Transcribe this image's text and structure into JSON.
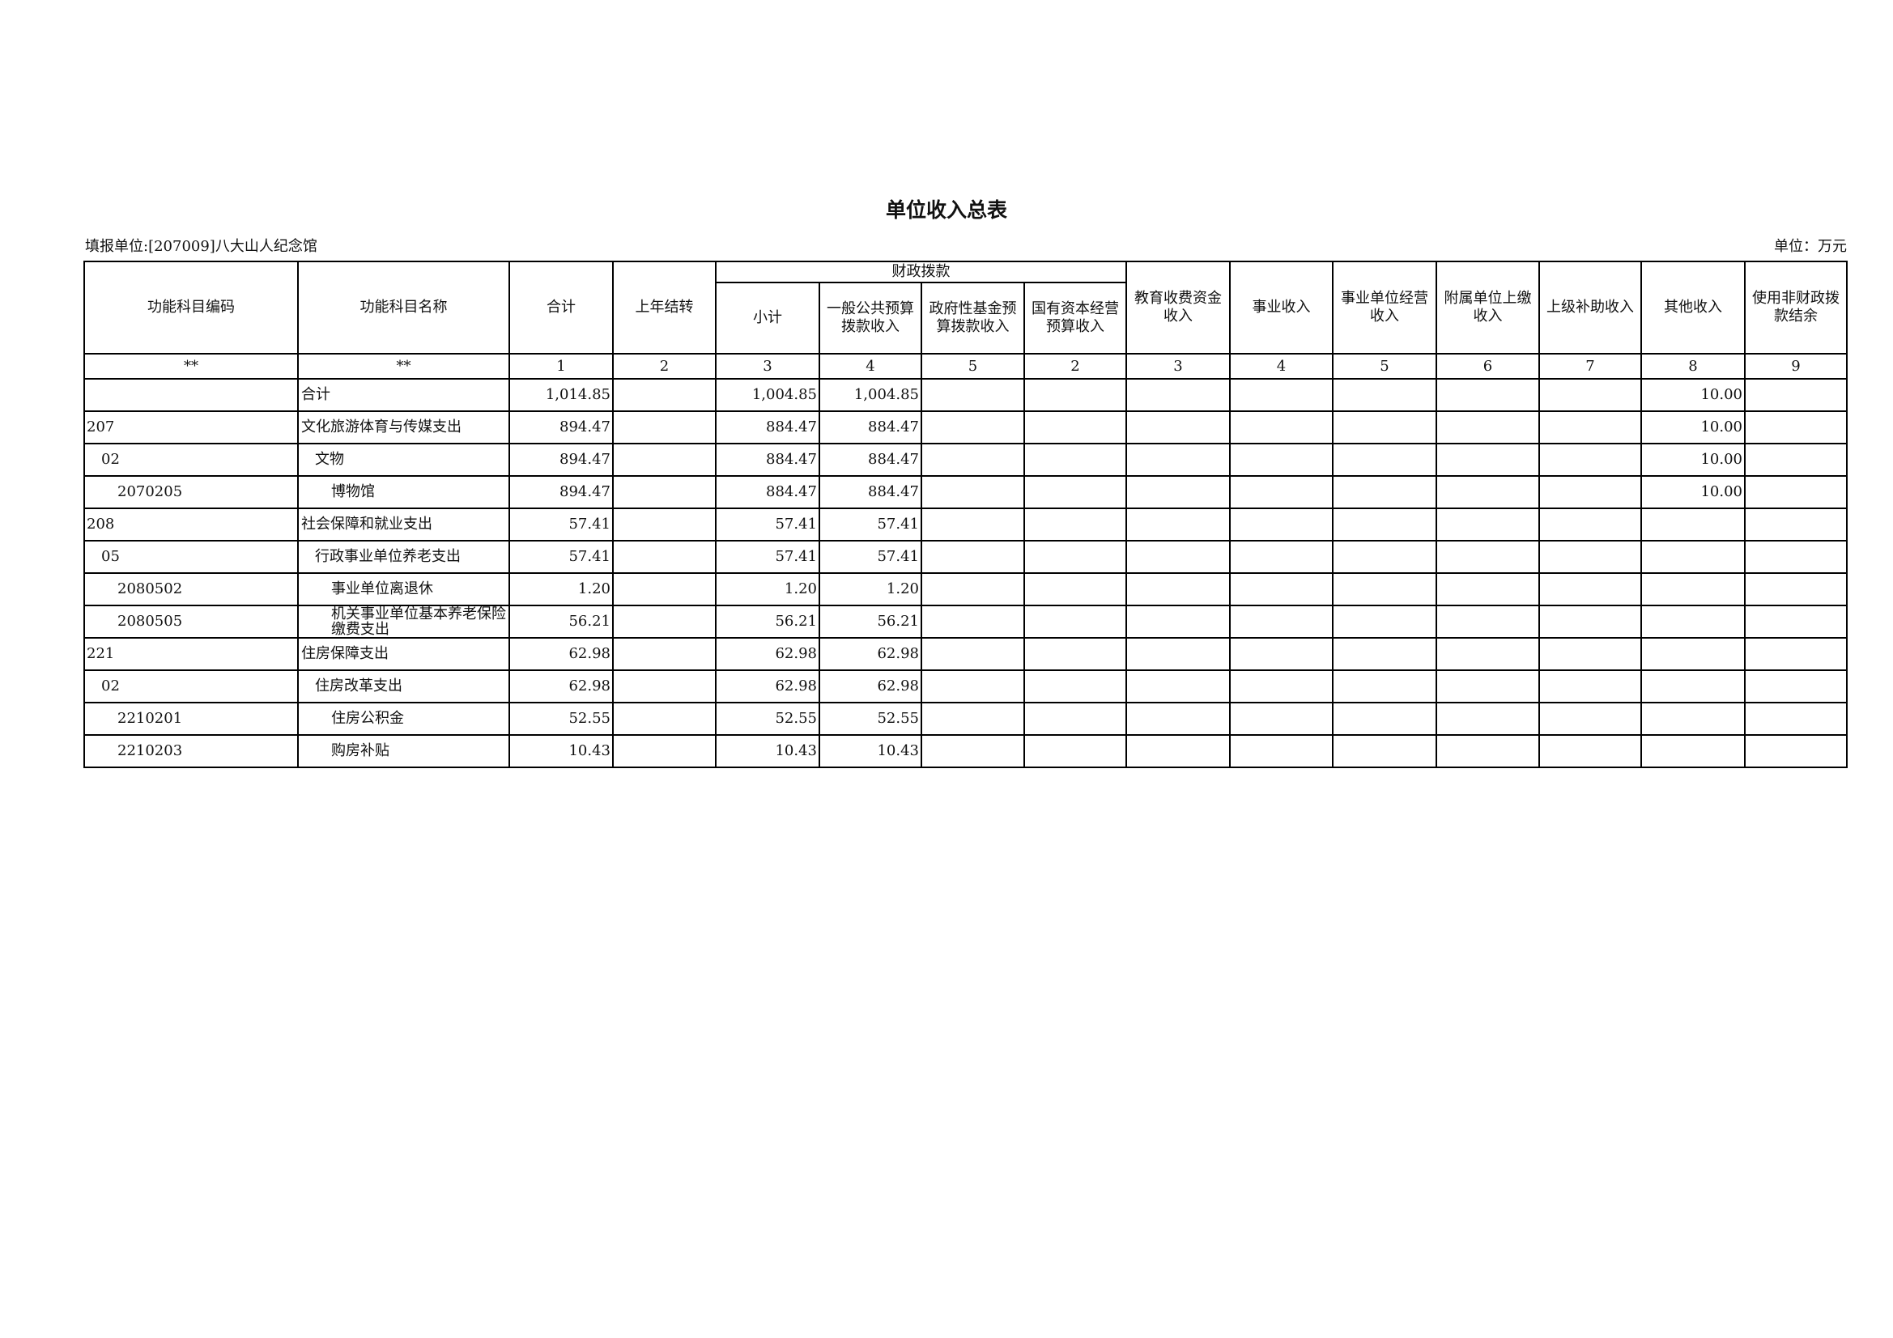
{
  "title": "单位收入总表",
  "unit_label": "填报单位:[207009]八大山人纪念馆",
  "currency_label": "单位：万元",
  "header": {
    "code": "功能科目编码",
    "name": "功能科目名称",
    "total": "合计",
    "carryover": "上年结转",
    "fiscal_group": "财政拨款",
    "subtotal": "小计",
    "general": "一般公共预算拨款收入",
    "gov_fund": "政府性基金预算拨款收入",
    "state_capital": "国有资本经营预算收入",
    "education": "教育收费资金收入",
    "business": "事业收入",
    "operating": "事业单位经营收入",
    "affiliated": "附属单位上缴收入",
    "superior": "上级补助收入",
    "other": "其他收入",
    "non_fiscal": "使用非财政拨款结余"
  },
  "index_row": [
    "**",
    "**",
    "1",
    "2",
    "3",
    "4",
    "5",
    "2",
    "3",
    "4",
    "5",
    "6",
    "7",
    "8",
    "9"
  ],
  "rows": [
    {
      "code": "",
      "name": "合计",
      "level": 0,
      "values": [
        "1,014.85",
        "",
        "1,004.85",
        "1,004.85",
        "",
        "",
        "",
        "",
        "",
        "",
        "",
        "10.00",
        ""
      ]
    },
    {
      "code": "207",
      "name": "文化旅游体育与传媒支出",
      "level": 0,
      "values": [
        "894.47",
        "",
        "884.47",
        "884.47",
        "",
        "",
        "",
        "",
        "",
        "",
        "",
        "10.00",
        ""
      ]
    },
    {
      "code": "02",
      "name": "文物",
      "level": 1,
      "values": [
        "894.47",
        "",
        "884.47",
        "884.47",
        "",
        "",
        "",
        "",
        "",
        "",
        "",
        "10.00",
        ""
      ]
    },
    {
      "code": "2070205",
      "name": "博物馆",
      "level": 2,
      "values": [
        "894.47",
        "",
        "884.47",
        "884.47",
        "",
        "",
        "",
        "",
        "",
        "",
        "",
        "10.00",
        ""
      ]
    },
    {
      "code": "208",
      "name": "社会保障和就业支出",
      "level": 0,
      "values": [
        "57.41",
        "",
        "57.41",
        "57.41",
        "",
        "",
        "",
        "",
        "",
        "",
        "",
        "",
        ""
      ]
    },
    {
      "code": "05",
      "name": "行政事业单位养老支出",
      "level": 1,
      "values": [
        "57.41",
        "",
        "57.41",
        "57.41",
        "",
        "",
        "",
        "",
        "",
        "",
        "",
        "",
        ""
      ]
    },
    {
      "code": "2080502",
      "name": "事业单位离退休",
      "level": 2,
      "values": [
        "1.20",
        "",
        "1.20",
        "1.20",
        "",
        "",
        "",
        "",
        "",
        "",
        "",
        "",
        ""
      ]
    },
    {
      "code": "2080505",
      "name": "机关事业单位基本养老保险缴费支出",
      "level": 2,
      "values": [
        "56.21",
        "",
        "56.21",
        "56.21",
        "",
        "",
        "",
        "",
        "",
        "",
        "",
        "",
        ""
      ]
    },
    {
      "code": "221",
      "name": "住房保障支出",
      "level": 0,
      "values": [
        "62.98",
        "",
        "62.98",
        "62.98",
        "",
        "",
        "",
        "",
        "",
        "",
        "",
        "",
        ""
      ]
    },
    {
      "code": "02",
      "name": "住房改革支出",
      "level": 1,
      "values": [
        "62.98",
        "",
        "62.98",
        "62.98",
        "",
        "",
        "",
        "",
        "",
        "",
        "",
        "",
        ""
      ]
    },
    {
      "code": "2210201",
      "name": "住房公积金",
      "level": 2,
      "values": [
        "52.55",
        "",
        "52.55",
        "52.55",
        "",
        "",
        "",
        "",
        "",
        "",
        "",
        "",
        ""
      ]
    },
    {
      "code": "2210203",
      "name": "购房补贴",
      "level": 2,
      "values": [
        "10.43",
        "",
        "10.43",
        "10.43",
        "",
        "",
        "",
        "",
        "",
        "",
        "",
        "",
        ""
      ]
    }
  ]
}
